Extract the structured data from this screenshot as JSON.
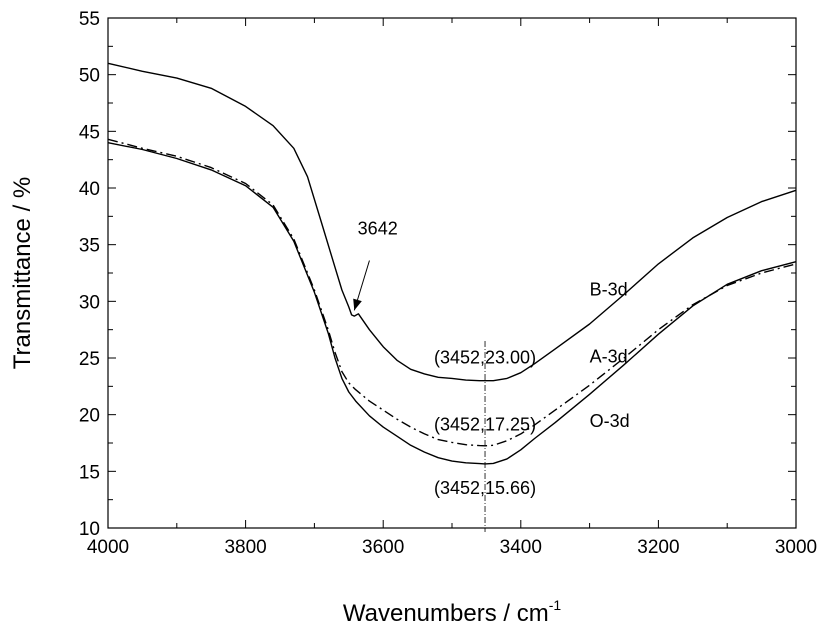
{
  "chart_data": {
    "type": "line",
    "xlabel": "Wavenumbers / cm",
    "xlabel_sup": "-1",
    "ylabel": "Transmittance / %",
    "xlim": [
      4000,
      3000
    ],
    "ylim": [
      10,
      55
    ],
    "x_reversed": true,
    "grid": false,
    "x_ticks": [
      4000,
      3800,
      3600,
      3400,
      3200,
      3000
    ],
    "y_ticks": [
      10,
      15,
      20,
      25,
      30,
      35,
      40,
      45,
      50,
      55
    ],
    "x_tick_labels": [
      "4000",
      "3800",
      "3600",
      "3400",
      "3200",
      "3000"
    ],
    "y_tick_labels": [
      "10",
      "15",
      "20",
      "25",
      "30",
      "35",
      "40",
      "45",
      "50",
      "55"
    ],
    "series": [
      {
        "name": "B-3d",
        "style": "solid",
        "x": [
          4000,
          3950,
          3900,
          3850,
          3800,
          3760,
          3730,
          3710,
          3690,
          3670,
          3660,
          3650,
          3646,
          3642,
          3636,
          3620,
          3600,
          3580,
          3560,
          3540,
          3520,
          3500,
          3480,
          3460,
          3452,
          3440,
          3420,
          3400,
          3380,
          3350,
          3300,
          3250,
          3200,
          3150,
          3100,
          3050,
          3000
        ],
        "y": [
          51.0,
          50.3,
          49.7,
          48.8,
          47.2,
          45.5,
          43.5,
          41.0,
          37.0,
          33.0,
          31.0,
          29.5,
          28.8,
          28.7,
          28.9,
          27.5,
          26.0,
          24.8,
          24.0,
          23.6,
          23.3,
          23.2,
          23.05,
          23.0,
          23.0,
          23.0,
          23.2,
          23.7,
          24.5,
          25.8,
          28.0,
          30.6,
          33.3,
          35.6,
          37.4,
          38.8,
          39.8
        ]
      },
      {
        "name": "A-3d",
        "style": "dashdot",
        "x": [
          4000,
          3950,
          3900,
          3850,
          3800,
          3760,
          3730,
          3700,
          3680,
          3670,
          3660,
          3650,
          3640,
          3620,
          3600,
          3580,
          3560,
          3540,
          3520,
          3500,
          3480,
          3460,
          3452,
          3440,
          3420,
          3400,
          3380,
          3350,
          3300,
          3250,
          3200,
          3150,
          3100,
          3050,
          3000
        ],
        "y": [
          44.3,
          43.5,
          42.8,
          41.8,
          40.4,
          38.5,
          35.5,
          31.0,
          27.5,
          25.5,
          23.8,
          22.8,
          22.2,
          21.2,
          20.4,
          19.6,
          18.9,
          18.3,
          17.8,
          17.55,
          17.35,
          17.27,
          17.25,
          17.3,
          17.7,
          18.3,
          19.1,
          20.4,
          22.6,
          25.0,
          27.5,
          29.7,
          31.4,
          32.5,
          33.3
        ]
      },
      {
        "name": "O-3d",
        "style": "solid",
        "x": [
          4000,
          3950,
          3900,
          3850,
          3800,
          3760,
          3730,
          3700,
          3680,
          3670,
          3660,
          3650,
          3640,
          3620,
          3600,
          3580,
          3560,
          3540,
          3520,
          3500,
          3480,
          3460,
          3452,
          3440,
          3420,
          3400,
          3380,
          3350,
          3300,
          3250,
          3200,
          3150,
          3100,
          3050,
          3000
        ],
        "y": [
          44.0,
          43.4,
          42.6,
          41.6,
          40.2,
          38.3,
          35.3,
          30.8,
          27.2,
          25.0,
          23.2,
          22.0,
          21.2,
          19.9,
          18.9,
          18.1,
          17.3,
          16.7,
          16.2,
          15.9,
          15.75,
          15.68,
          15.66,
          15.7,
          16.1,
          16.9,
          17.9,
          19.3,
          21.8,
          24.4,
          27.1,
          29.6,
          31.5,
          32.7,
          33.5
        ]
      }
    ],
    "series_labels": [
      "B-3d",
      "A-3d",
      "O-3d"
    ],
    "peak_labels": [
      "(3452,23.00)",
      "(3452,17.25)",
      "(3452,15.66)"
    ],
    "arrow_label": "3642",
    "marker_line_x": 3452
  }
}
